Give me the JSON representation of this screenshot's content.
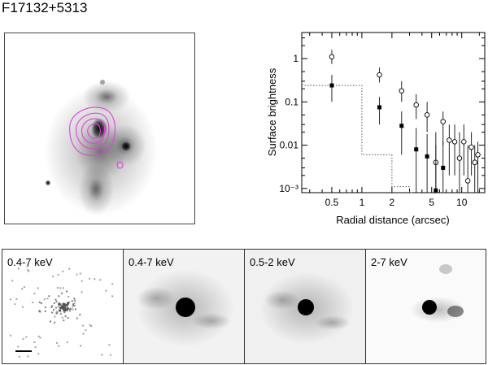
{
  "figure": {
    "title": "F17132+5313"
  },
  "panels": [
    {
      "label": "0.4-7 keV"
    },
    {
      "label": "0.4-7 keV"
    },
    {
      "label": "0.5-2 keV"
    },
    {
      "label": "2-7 keV"
    }
  ],
  "colors": {
    "contour": "#e040e0",
    "axis": "#000000",
    "dotted_model": "#555555"
  },
  "chart_data": {
    "type": "scatter",
    "xlabel": "Radial distance (arcsec)",
    "ylabel": "Surface brightness",
    "x_scale": "log",
    "y_scale": "log",
    "xlim": [
      0.25,
      17
    ],
    "ylim": [
      0.0008,
      4
    ],
    "x_ticks": [
      {
        "v": 0.5,
        "label": "0.5"
      },
      {
        "v": 1,
        "label": "1"
      },
      {
        "v": 2,
        "label": "2"
      },
      {
        "v": 5,
        "label": "5"
      },
      {
        "v": 10,
        "label": "10"
      }
    ],
    "y_ticks": [
      {
        "v": 1,
        "label": "1"
      },
      {
        "v": 0.1,
        "label": "0.1"
      },
      {
        "v": 0.01,
        "label": "0.01"
      },
      {
        "v": 0.001,
        "label": "10⁻³"
      }
    ],
    "series": [
      {
        "marker": "open-circle",
        "points": [
          {
            "x": 0.5,
            "y": 1.1,
            "lo": 0.75,
            "hi": 1.6
          },
          {
            "x": 1.5,
            "y": 0.42,
            "lo": 0.28,
            "hi": 0.62
          },
          {
            "x": 2.5,
            "y": 0.18,
            "lo": 0.1,
            "hi": 0.3
          },
          {
            "x": 3.5,
            "y": 0.085,
            "lo": 0.04,
            "hi": 0.15
          },
          {
            "x": 4.5,
            "y": 0.05,
            "lo": 0.02,
            "hi": 0.1
          },
          {
            "x": 5.5,
            "y": 0.004,
            "lo": 0.0008,
            "hi": 0.02
          },
          {
            "x": 6.5,
            "y": 0.035,
            "lo": 0.01,
            "hi": 0.06
          },
          {
            "x": 7.5,
            "y": 0.013,
            "lo": 0.002,
            "hi": 0.03
          },
          {
            "x": 8.5,
            "y": 0.012,
            "lo": 0.002,
            "hi": 0.03
          },
          {
            "x": 9.5,
            "y": 0.005,
            "lo": 0.0008,
            "hi": 0.02
          },
          {
            "x": 10.5,
            "y": 0.012,
            "lo": 0.002,
            "hi": 0.03
          },
          {
            "x": 11.5,
            "y": 0.0015,
            "lo": 0.0008,
            "hi": 0.01
          },
          {
            "x": 12.5,
            "y": 0.009,
            "lo": 0.002,
            "hi": 0.02
          },
          {
            "x": 13.5,
            "y": 0.004,
            "lo": 0.0008,
            "hi": 0.01
          },
          {
            "x": 14.5,
            "y": 0.006,
            "lo": 0.0008,
            "hi": 0.012
          }
        ]
      },
      {
        "marker": "filled-square",
        "points": [
          {
            "x": 0.5,
            "y": 0.24,
            "lo": 0.1,
            "hi": 0.42
          },
          {
            "x": 1.5,
            "y": 0.075,
            "lo": 0.03,
            "hi": 0.13
          },
          {
            "x": 2.5,
            "y": 0.028,
            "lo": 0.006,
            "hi": 0.06
          },
          {
            "x": 3.5,
            "y": 0.008,
            "lo": 0.0008,
            "hi": 0.025
          },
          {
            "x": 4.5,
            "y": 0.0055,
            "lo": 0.0008,
            "hi": 0.018
          },
          {
            "x": 5.5,
            "y": 0.0009,
            "lo": 0.0008,
            "hi": 0.01
          },
          {
            "x": 6.5,
            "y": 0.003,
            "lo": 0.0008,
            "hi": 0.012
          }
        ]
      }
    ],
    "model_steps": [
      {
        "x0": 0.25,
        "x1": 1.0,
        "y": 0.24
      },
      {
        "x0": 1.0,
        "x1": 2.0,
        "y": 0.006
      },
      {
        "x0": 2.0,
        "x1": 3.0,
        "y": 0.0011
      },
      {
        "x0": 3.0,
        "x1": 3.3,
        "y": 0.0008
      }
    ]
  }
}
